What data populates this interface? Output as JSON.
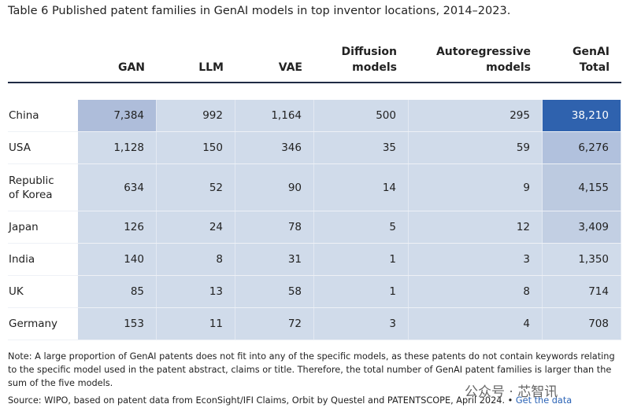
{
  "header": {
    "title": "Table 6 Published patent families in GenAI models in top inventor locations, 2014–2023."
  },
  "table": {
    "columns": [
      "",
      "GAN",
      "LLM",
      "VAE",
      "Diffusion models",
      "Autoregressive models",
      "GenAI Total"
    ],
    "rows": [
      [
        "China",
        "7,384",
        "992",
        "1,164",
        "500",
        "295",
        "38,210"
      ],
      [
        "USA",
        "1,128",
        "150",
        "346",
        "35",
        "59",
        "6,276"
      ],
      [
        "Republic of Korea",
        "634",
        "52",
        "90",
        "14",
        "9",
        "4,155"
      ],
      [
        "Japan",
        "126",
        "24",
        "78",
        "5",
        "12",
        "3,409"
      ],
      [
        "India",
        "140",
        "8",
        "31",
        "1",
        "3",
        "1,350"
      ],
      [
        "UK",
        "85",
        "13",
        "58",
        "1",
        "8",
        "714"
      ],
      [
        "Germany",
        "153",
        "11",
        "72",
        "3",
        "4",
        "708"
      ]
    ]
  },
  "footer": {
    "note": "Note: A large proportion of GenAI patents does not fit into any of the specific models, as these patents do not contain keywords relating to the specific model used in the patent abstract, claims or title. Therefore, the total number of GenAI patent families is larger than the sum of the five models.",
    "source": "Source: WIPO, based on patent data from EconSight/IFI Claims, Orbit by Questel and PATENTSCOPE, April 2024.",
    "separator": "•",
    "link": "Get the data"
  },
  "watermark": "公众号 · 芯智讯"
}
